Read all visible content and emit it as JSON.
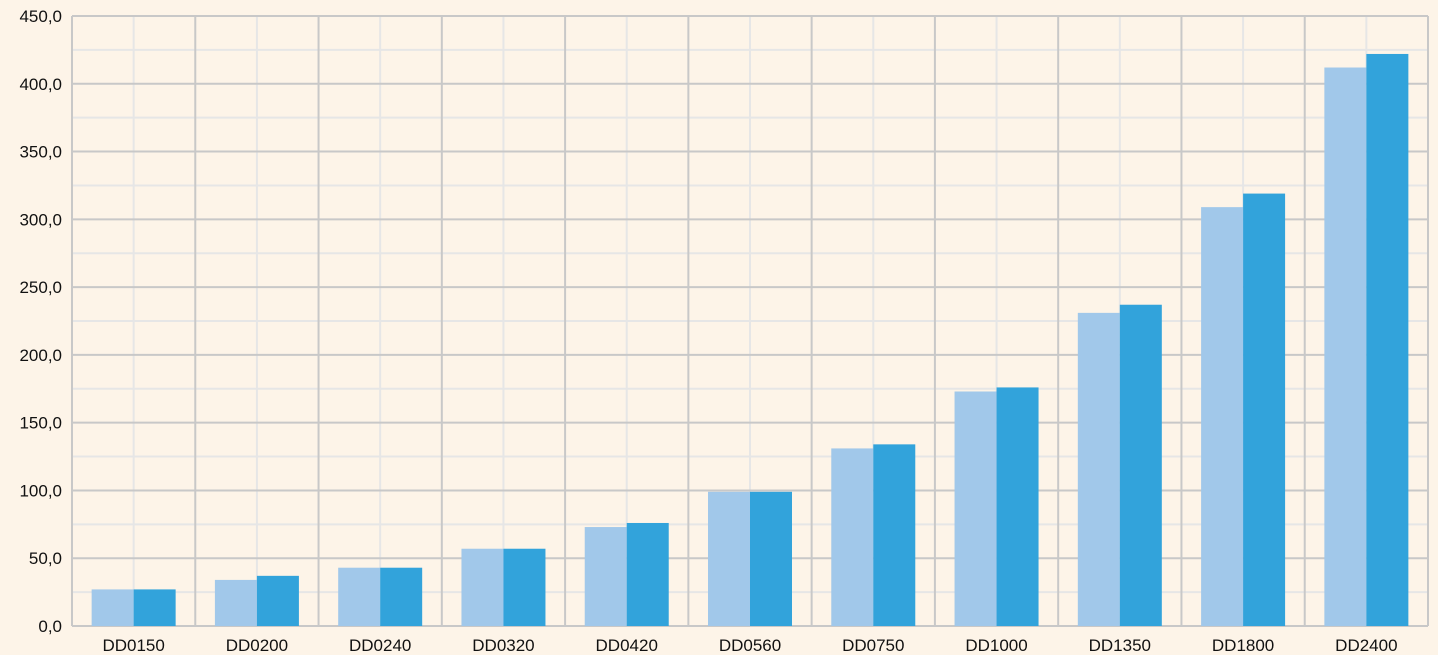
{
  "chart_data": {
    "type": "bar",
    "title": "",
    "xlabel": "",
    "ylabel": "",
    "ylim": [
      0,
      450
    ],
    "y_ticks": [
      "0,0",
      "50,0",
      "100,0",
      "150,0",
      "200,0",
      "250,0",
      "300,0",
      "350,0",
      "400,0",
      "450,0"
    ],
    "categories": [
      "DD0150",
      "DD0200",
      "DD0240",
      "DD0320",
      "DD0420",
      "DD0560",
      "DD0750",
      "DD1000",
      "DD1350",
      "DD1800",
      "DD2400"
    ],
    "series": [
      {
        "values": [
          27,
          34,
          43,
          57,
          73,
          99,
          131,
          173,
          231,
          309,
          412
        ]
      },
      {
        "values": [
          27,
          37,
          43,
          57,
          76,
          99,
          134,
          176,
          237,
          319,
          422
        ]
      }
    ],
    "grid": true,
    "legend": "none"
  },
  "colors": {
    "background": "#fdf4e8",
    "grid_major": "#c8c8c8",
    "grid_minor": "#e6e6e6",
    "series": [
      "#a1c8ea",
      "#32a3db"
    ],
    "text": "#111111"
  }
}
